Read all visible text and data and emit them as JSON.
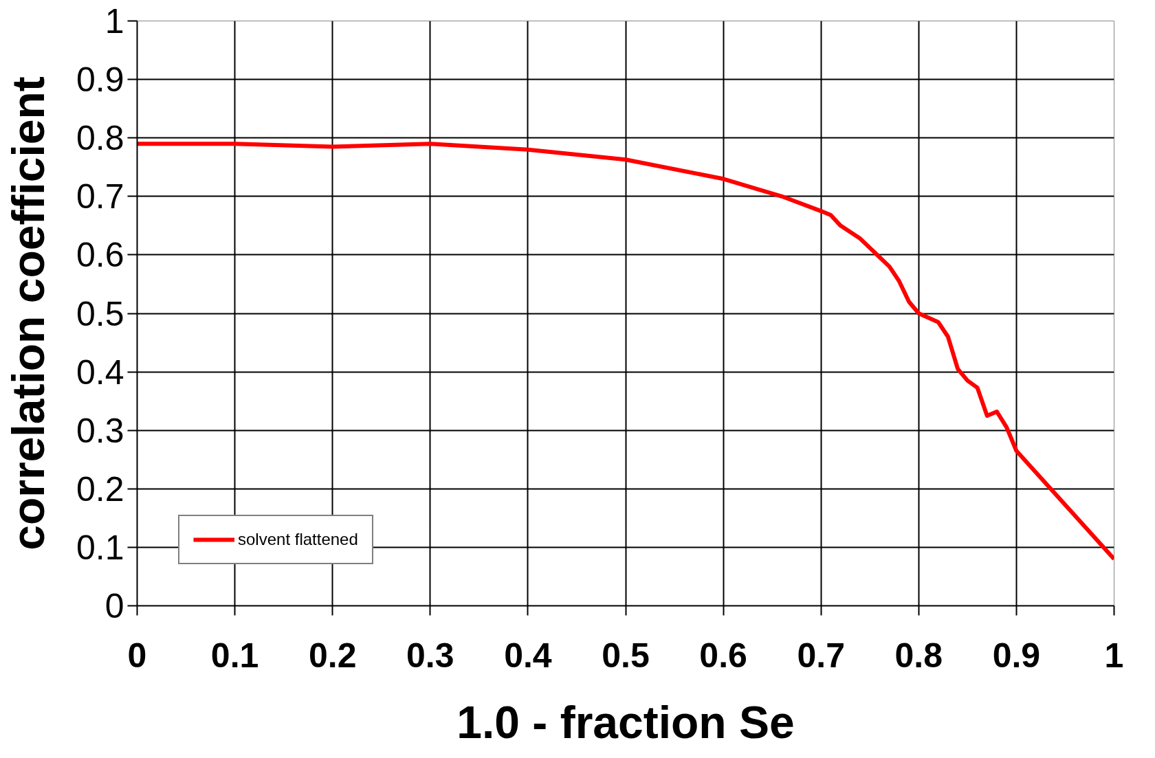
{
  "chart_data": {
    "type": "line",
    "xlabel": "1.0 - fraction Se",
    "ylabel": "correlation coefficient",
    "xlim": [
      0,
      1
    ],
    "ylim": [
      0,
      1
    ],
    "xticks": [
      0,
      0.1,
      0.2,
      0.3,
      0.4,
      0.5,
      0.6,
      0.7,
      0.8,
      0.9,
      1
    ],
    "yticks": [
      0,
      0.1,
      0.2,
      0.3,
      0.4,
      0.5,
      0.6,
      0.7,
      0.8,
      0.9,
      1
    ],
    "grid": true,
    "legend": "bottom left",
    "marker": "none",
    "line_style": "solid",
    "series": [
      {
        "name": "solvent flattened",
        "color": "#ff0000",
        "x": [
          0,
          0.1,
          0.2,
          0.3,
          0.4,
          0.5,
          0.6,
          0.66,
          0.7,
          0.71,
          0.72,
          0.74,
          0.77,
          0.78,
          0.79,
          0.8,
          0.82,
          0.83,
          0.84,
          0.85,
          0.86,
          0.87,
          0.88,
          0.89,
          0.9,
          1.0
        ],
        "values": [
          0.79,
          0.79,
          0.785,
          0.79,
          0.78,
          0.763,
          0.73,
          0.7,
          0.675,
          0.668,
          0.65,
          0.628,
          0.58,
          0.555,
          0.52,
          0.5,
          0.485,
          0.46,
          0.405,
          0.385,
          0.373,
          0.325,
          0.332,
          0.305,
          0.265,
          0.08
        ]
      }
    ]
  }
}
